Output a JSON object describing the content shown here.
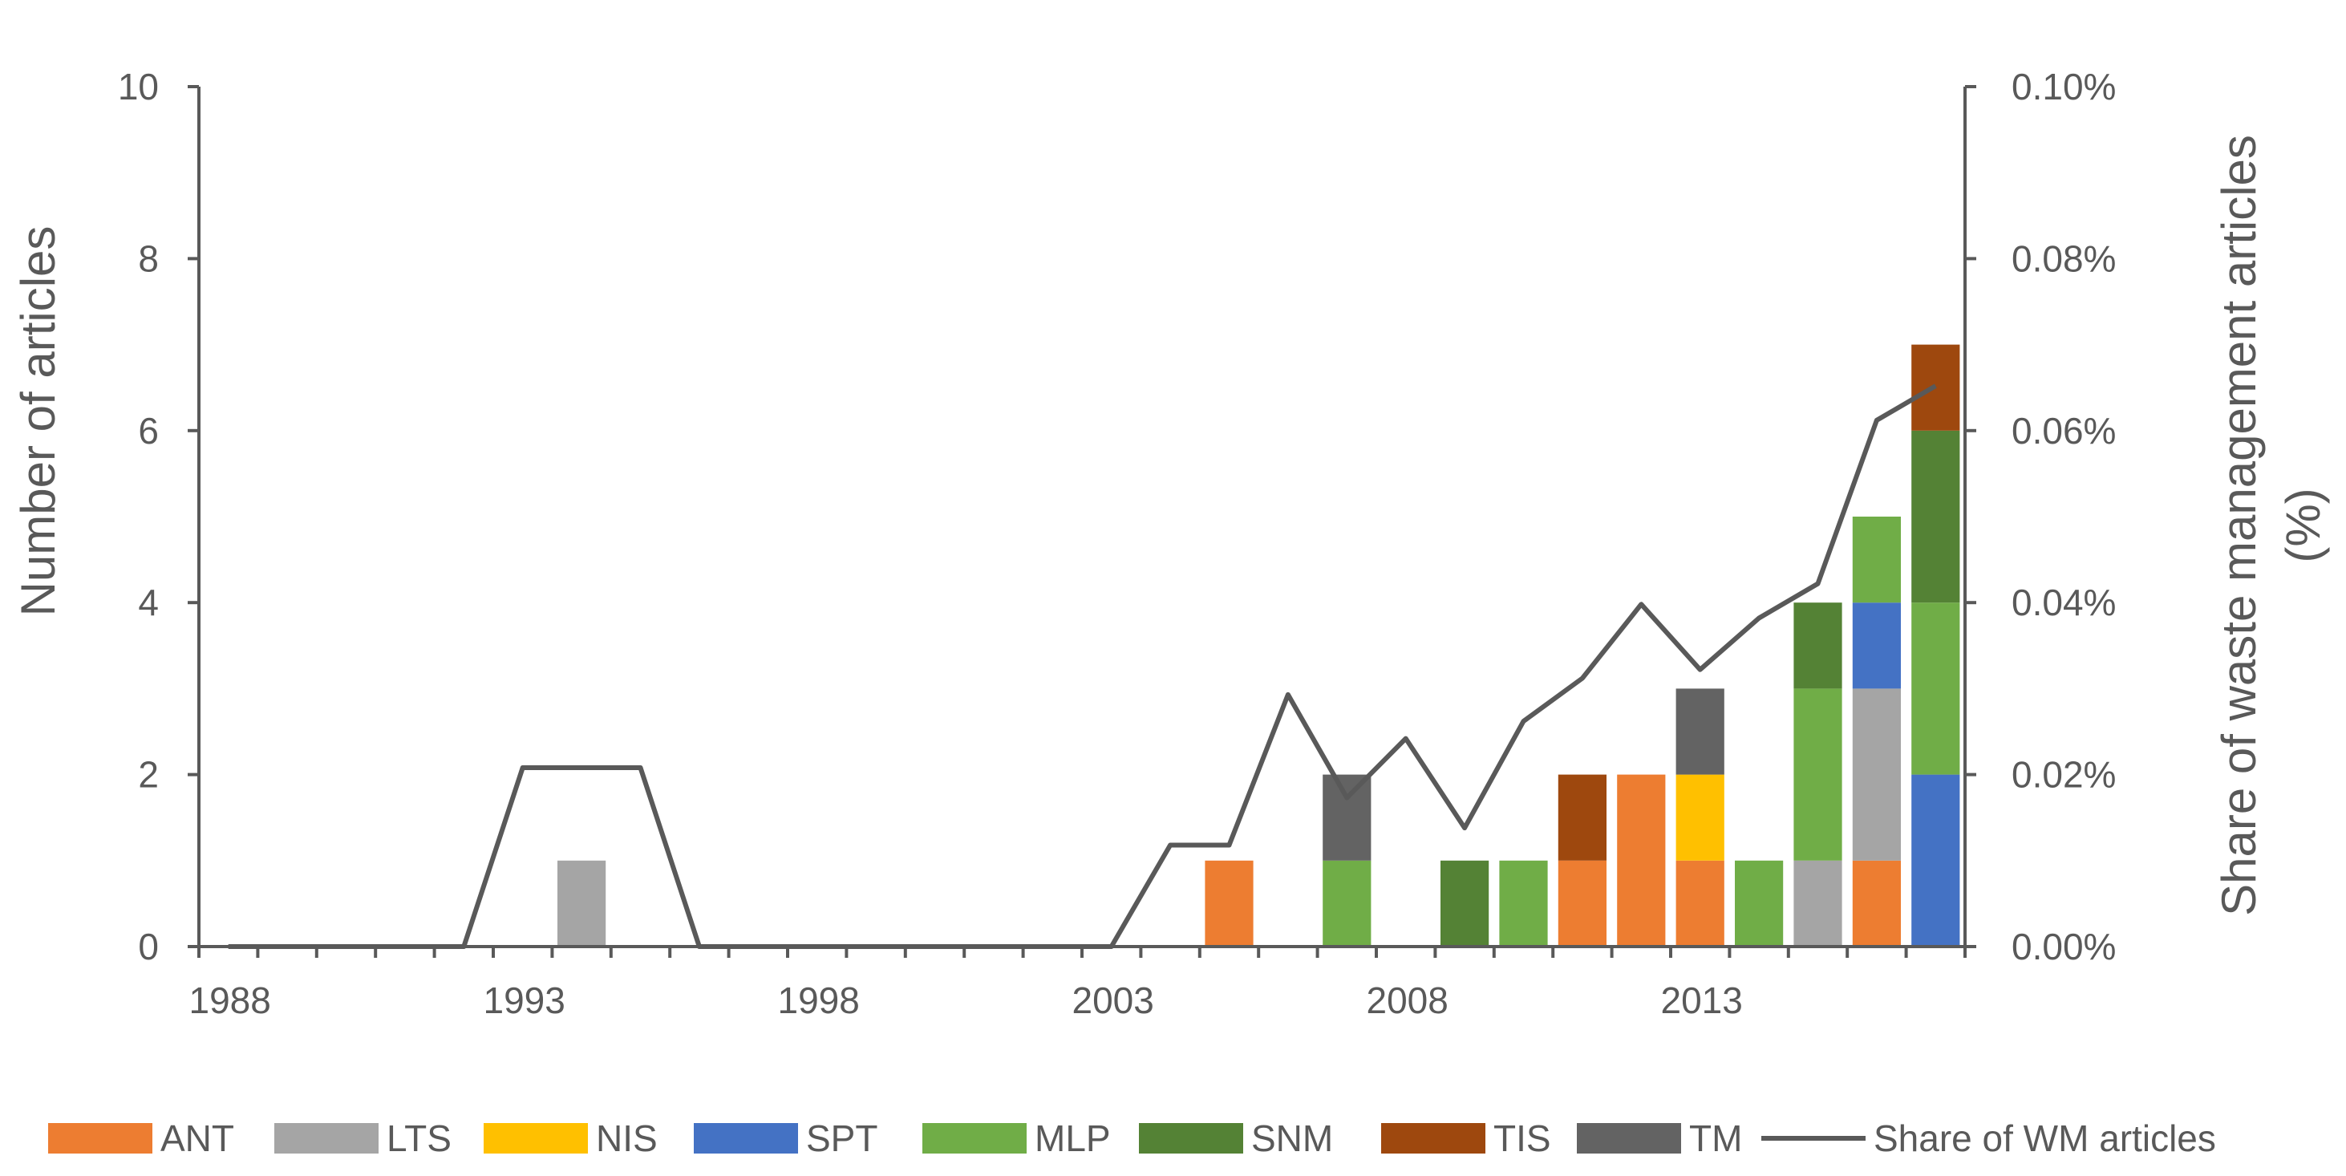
{
  "chart_data": {
    "type": "bar",
    "stacked": true,
    "title": "",
    "xlabel": "",
    "ylabel": "Number of articles",
    "y2label": "Share of waste management articles (%)",
    "ylim": [
      0,
      10
    ],
    "y2lim": [
      0,
      0.1
    ],
    "yticks": [
      0,
      2,
      4,
      6,
      8,
      10
    ],
    "ytick_labels": [
      "0",
      "2",
      "4",
      "6",
      "8",
      "10"
    ],
    "y2ticks": [
      0,
      0.02,
      0.04,
      0.06,
      0.08,
      0.1
    ],
    "y2tick_labels": [
      "0.00%",
      "0.02%",
      "0.04%",
      "0.06%",
      "0.08%",
      "0.10%"
    ],
    "x": [
      1988,
      1989,
      1990,
      1991,
      1992,
      1993,
      1994,
      1995,
      1996,
      1997,
      1998,
      1999,
      2000,
      2001,
      2002,
      2003,
      2004,
      2005,
      2006,
      2007,
      2008,
      2009,
      2010,
      2011,
      2012,
      2013,
      2014,
      2015,
      2016,
      2017
    ],
    "xtick_labels": [
      "1988",
      "1993",
      "1998",
      "2003",
      "2008",
      "2013"
    ],
    "xtick_values": [
      1988,
      1993,
      1998,
      2003,
      2008,
      2013
    ],
    "legend_position": "bottom",
    "series": [
      {
        "name": "ANT",
        "color": "#ED7D31",
        "values": [
          0,
          0,
          0,
          0,
          0,
          0,
          0,
          0,
          0,
          0,
          0,
          0,
          0,
          0,
          0,
          0,
          0,
          1,
          0,
          0,
          0,
          0,
          0,
          1,
          2,
          1,
          0,
          0,
          1,
          0
        ]
      },
      {
        "name": "LTS",
        "color": "#A5A5A5",
        "values": [
          0,
          0,
          0,
          0,
          0,
          0,
          1,
          0,
          0,
          0,
          0,
          0,
          0,
          0,
          0,
          0,
          0,
          0,
          0,
          0,
          0,
          0,
          0,
          0,
          0,
          0,
          0,
          1,
          2,
          0
        ]
      },
      {
        "name": "NIS",
        "color": "#FFC000",
        "values": [
          0,
          0,
          0,
          0,
          0,
          0,
          0,
          0,
          0,
          0,
          0,
          0,
          0,
          0,
          0,
          0,
          0,
          0,
          0,
          0,
          0,
          0,
          0,
          0,
          0,
          1,
          0,
          0,
          0,
          0
        ]
      },
      {
        "name": "SPT",
        "color": "#4472C4",
        "values": [
          0,
          0,
          0,
          0,
          0,
          0,
          0,
          0,
          0,
          0,
          0,
          0,
          0,
          0,
          0,
          0,
          0,
          0,
          0,
          0,
          0,
          0,
          0,
          0,
          0,
          0,
          0,
          0,
          1,
          2
        ]
      },
      {
        "name": "MLP",
        "color": "#70AD47",
        "values": [
          0,
          0,
          0,
          0,
          0,
          0,
          0,
          0,
          0,
          0,
          0,
          0,
          0,
          0,
          0,
          0,
          0,
          0,
          0,
          1,
          0,
          0,
          1,
          0,
          0,
          0,
          1,
          2,
          1,
          2
        ]
      },
      {
        "name": "SNM",
        "color": "#548235",
        "values": [
          0,
          0,
          0,
          0,
          0,
          0,
          0,
          0,
          0,
          0,
          0,
          0,
          0,
          0,
          0,
          0,
          0,
          0,
          0,
          0,
          0,
          1,
          0,
          0,
          0,
          0,
          0,
          1,
          0,
          2
        ]
      },
      {
        "name": "TIS",
        "color": "#9E480E",
        "values": [
          0,
          0,
          0,
          0,
          0,
          0,
          0,
          0,
          0,
          0,
          0,
          0,
          0,
          0,
          0,
          0,
          0,
          0,
          0,
          0,
          0,
          0,
          0,
          1,
          0,
          0,
          0,
          0,
          0,
          1
        ]
      },
      {
        "name": "TM",
        "color": "#636363",
        "values": [
          0,
          0,
          0,
          0,
          0,
          0,
          0,
          0,
          0,
          0,
          0,
          0,
          0,
          0,
          0,
          0,
          0,
          0,
          0,
          1,
          0,
          0,
          0,
          0,
          0,
          1,
          0,
          0,
          0,
          0
        ]
      }
    ],
    "line_series": {
      "name": "Share of WM articles",
      "color": "#595959",
      "axis": "right",
      "values": [
        0,
        0,
        0,
        0,
        0,
        0.0208,
        0.0208,
        0.0208,
        0,
        0,
        0,
        0,
        0,
        0,
        0,
        0,
        0.0118,
        0.0118,
        0.0293,
        0.0173,
        0.0242,
        0.0138,
        0.0262,
        0.0312,
        0.0398,
        0.0322,
        0.0382,
        0.0422,
        0.0612,
        0.0652
      ]
    }
  }
}
